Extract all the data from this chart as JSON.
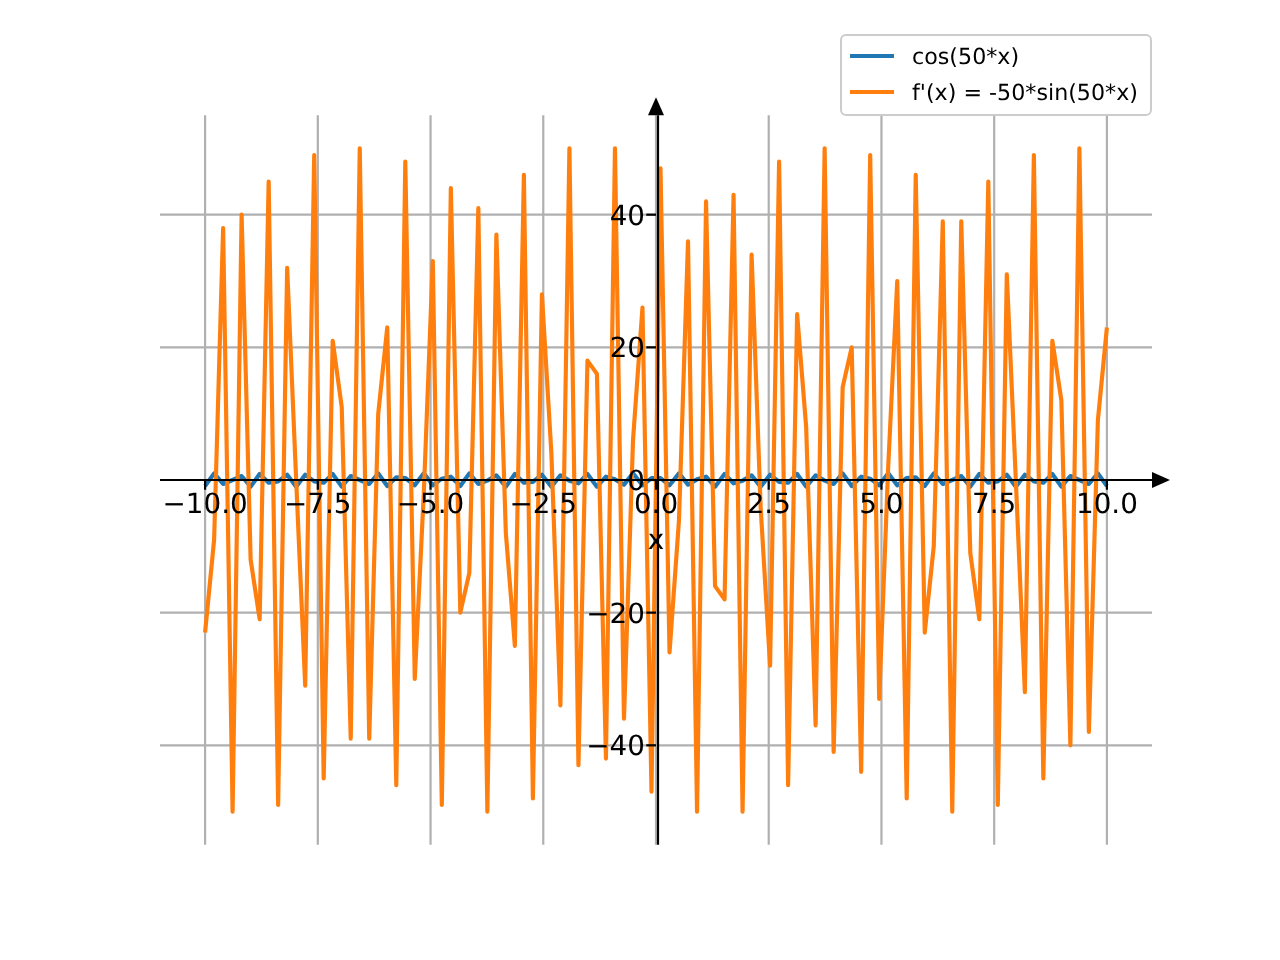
{
  "chart_data": {
    "type": "line",
    "xlabel": "x",
    "xlim": [
      -11,
      11
    ],
    "xticks": [
      {
        "value": -10,
        "label": "−10.0"
      },
      {
        "value": -7.5,
        "label": "−7.5"
      },
      {
        "value": -5,
        "label": "−5.0"
      },
      {
        "value": -2.5,
        "label": "−2.5"
      },
      {
        "value": 0,
        "label": "0.0"
      },
      {
        "value": 2.5,
        "label": "2.5"
      },
      {
        "value": 5,
        "label": "5.0"
      },
      {
        "value": 7.5,
        "label": "7.5"
      },
      {
        "value": 10,
        "label": "10.0"
      }
    ],
    "ylim": [
      -55,
      55
    ],
    "yticks": [
      {
        "value": -40,
        "label": "−40"
      },
      {
        "value": -20,
        "label": "−20"
      },
      0,
      20,
      40
    ],
    "grid": true,
    "legend": "top right",
    "x": [
      -10,
      -9.8,
      -9.6,
      -9.39,
      -9.19,
      -8.99,
      -8.79,
      -8.59,
      -8.38,
      -8.18,
      -7.98,
      -7.78,
      -7.58,
      -7.37,
      -7.17,
      -6.97,
      -6.77,
      -6.57,
      -6.36,
      -6.16,
      -5.96,
      -5.76,
      -5.56,
      -5.35,
      -5.15,
      -4.95,
      -4.75,
      -4.55,
      -4.34,
      -4.14,
      -3.94,
      -3.74,
      -3.54,
      -3.33,
      -3.13,
      -2.93,
      -2.73,
      -2.53,
      -2.32,
      -2.12,
      -1.92,
      -1.72,
      -1.52,
      -1.31,
      -1.11,
      -0.91,
      -0.71,
      -0.51,
      -0.3,
      -0.1,
      0.1,
      0.3,
      0.51,
      0.71,
      0.91,
      1.11,
      1.31,
      1.52,
      1.72,
      1.92,
      2.12,
      2.32,
      2.53,
      2.73,
      2.93,
      3.13,
      3.33,
      3.54,
      3.74,
      3.94,
      4.14,
      4.34,
      4.55,
      4.75,
      4.95,
      5.15,
      5.35,
      5.56,
      5.76,
      5.96,
      6.16,
      6.36,
      6.57,
      6.77,
      6.97,
      7.17,
      7.37,
      7.58,
      7.78,
      7.98,
      8.18,
      8.38,
      8.59,
      8.79,
      8.99,
      9.19,
      9.39,
      9.6,
      9.8,
      10
    ],
    "series": [
      {
        "name": "cos(50*x)",
        "color": "#1f77b4",
        "values": [
          -0.9,
          1,
          -0.6,
          0,
          0.6,
          -1,
          0.9,
          -0.4,
          -0.2,
          0.8,
          -1,
          0.8,
          -0.2,
          -0.4,
          0.9,
          -1,
          0.6,
          0,
          -0.6,
          1,
          -0.9,
          0.4,
          0.3,
          -0.8,
          1,
          -0.8,
          0.2,
          0.5,
          -0.9,
          1,
          -0.6,
          -0.1,
          0.7,
          -1,
          0.9,
          -0.4,
          -0.3,
          0.8,
          -1,
          0.7,
          -0.1,
          -0.5,
          0.9,
          -1,
          0.5,
          0.1,
          -0.7,
          1,
          -0.8,
          0.3,
          0.3,
          -0.8,
          1,
          -0.7,
          0.1,
          0.5,
          -1,
          0.9,
          -0.5,
          -0.1,
          0.7,
          -1,
          0.8,
          -0.3,
          -0.4,
          0.9,
          -1,
          0.7,
          -0.1,
          -0.6,
          1,
          -0.9,
          0.5,
          0.2,
          -0.8,
          1,
          -0.8,
          0.3,
          0.4,
          -0.9,
          1,
          -0.6,
          0,
          0.6,
          -1,
          0.9,
          -0.4,
          -0.2,
          0.8,
          -1,
          0.8,
          -0.2,
          -0.4,
          0.9,
          -1,
          0.6,
          0,
          -0.6,
          1,
          -0.9
        ]
      },
      {
        "name": "f'(x) = -50*sin(50*x)",
        "color": "#ff7f0e",
        "values": [
          -23,
          -9,
          38,
          -50,
          40,
          -12,
          -21,
          45,
          -49,
          32,
          0,
          -31,
          49,
          -45,
          21,
          11,
          -39,
          50,
          -39,
          10,
          23,
          -46,
          48,
          -30,
          -2,
          33,
          -49,
          44,
          -20,
          -14,
          41,
          -50,
          37,
          -8,
          -25,
          46,
          -48,
          28,
          4,
          -34,
          50,
          -43,
          18,
          16,
          -42,
          50,
          -36,
          6,
          26,
          -47,
          47,
          -26,
          -6,
          36,
          -50,
          42,
          -16,
          -18,
          43,
          -50,
          34,
          -4,
          -28,
          48,
          -46,
          25,
          8,
          -37,
          50,
          -41,
          14,
          20,
          -44,
          49,
          -33,
          2,
          30,
          -48,
          46,
          -23,
          -10,
          39,
          -50,
          39,
          -11,
          -21,
          45,
          -49,
          31,
          0,
          -32,
          49,
          -45,
          21,
          12,
          -40,
          50,
          -38,
          9,
          23
        ]
      }
    ]
  }
}
